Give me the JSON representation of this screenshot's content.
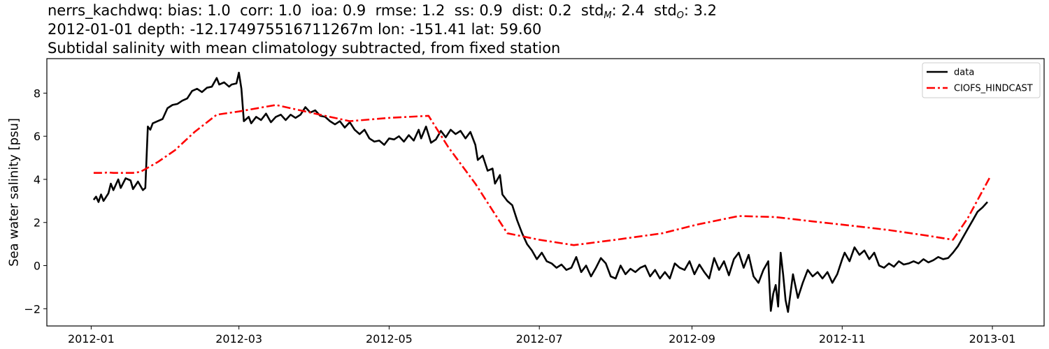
{
  "title": {
    "stats_prefix": "nerrs_kachdwq: bias: 1.0  corr: 1.0  ioa: 0.9  rmse: 1.2  ss: 0.9  dist: 0.2  std",
    "std_m_sub": "M",
    "std_m_value": ": 2.4  std",
    "std_o_sub": "O",
    "std_o_value": ": 3.2",
    "line2": "2012-01-01 depth: -12.174975516711267m lon: -151.41 lat: 59.60",
    "line3": "Subtidal salinity with mean climatology subtracted, from fixed station"
  },
  "chart_data": {
    "type": "line",
    "ylabel": "Sea water salinity [psu]",
    "xlim": [
      "2011-12-14",
      "2013-01-22"
    ],
    "ylim": [
      -2.8,
      9.6
    ],
    "x_ticks": [
      "2012-01-01",
      "2012-03-01",
      "2012-05-01",
      "2012-07-01",
      "2012-09-01",
      "2012-11-01",
      "2013-01-01"
    ],
    "x_tick_labels": [
      "2012-01",
      "2012-03",
      "2012-05",
      "2012-07",
      "2012-09",
      "2012-11",
      "2013-01"
    ],
    "y_ticks": [
      -2,
      0,
      2,
      4,
      6,
      8
    ],
    "y_tick_labels": [
      "−2",
      "0",
      "2",
      "4",
      "6",
      "8"
    ],
    "legend_position": "upper right",
    "grid": false,
    "series": [
      {
        "name": "data",
        "color": "#000000",
        "style": "solid",
        "points": [
          [
            "2012-01-02",
            3.05
          ],
          [
            "2012-01-03",
            3.2
          ],
          [
            "2012-01-04",
            2.95
          ],
          [
            "2012-01-05",
            3.3
          ],
          [
            "2012-01-06",
            3.0
          ],
          [
            "2012-01-08",
            3.35
          ],
          [
            "2012-01-09",
            3.8
          ],
          [
            "2012-01-10",
            3.5
          ],
          [
            "2012-01-12",
            4.0
          ],
          [
            "2012-01-13",
            3.6
          ],
          [
            "2012-01-15",
            4.05
          ],
          [
            "2012-01-17",
            3.95
          ],
          [
            "2012-01-18",
            3.55
          ],
          [
            "2012-01-20",
            3.9
          ],
          [
            "2012-01-22",
            3.5
          ],
          [
            "2012-01-23",
            3.6
          ],
          [
            "2012-01-24",
            6.45
          ],
          [
            "2012-01-25",
            6.3
          ],
          [
            "2012-01-26",
            6.6
          ],
          [
            "2012-01-28",
            6.7
          ],
          [
            "2012-01-30",
            6.8
          ],
          [
            "2012-02-01",
            7.3
          ],
          [
            "2012-02-03",
            7.45
          ],
          [
            "2012-02-05",
            7.5
          ],
          [
            "2012-02-07",
            7.65
          ],
          [
            "2012-02-09",
            7.75
          ],
          [
            "2012-02-11",
            8.1
          ],
          [
            "2012-02-13",
            8.2
          ],
          [
            "2012-02-15",
            8.05
          ],
          [
            "2012-02-17",
            8.25
          ],
          [
            "2012-02-19",
            8.3
          ],
          [
            "2012-02-21",
            8.7
          ],
          [
            "2012-02-22",
            8.4
          ],
          [
            "2012-02-24",
            8.5
          ],
          [
            "2012-02-26",
            8.3
          ],
          [
            "2012-02-27",
            8.4
          ],
          [
            "2012-02-29",
            8.45
          ],
          [
            "2012-03-01",
            8.95
          ],
          [
            "2012-03-02",
            8.2
          ],
          [
            "2012-03-03",
            6.7
          ],
          [
            "2012-03-05",
            6.9
          ],
          [
            "2012-03-06",
            6.6
          ],
          [
            "2012-03-08",
            6.9
          ],
          [
            "2012-03-10",
            6.75
          ],
          [
            "2012-03-12",
            7.05
          ],
          [
            "2012-03-14",
            6.65
          ],
          [
            "2012-03-16",
            6.9
          ],
          [
            "2012-03-18",
            7.0
          ],
          [
            "2012-03-20",
            6.75
          ],
          [
            "2012-03-22",
            7.0
          ],
          [
            "2012-03-24",
            6.85
          ],
          [
            "2012-03-26",
            7.0
          ],
          [
            "2012-03-28",
            7.35
          ],
          [
            "2012-03-30",
            7.1
          ],
          [
            "2012-04-01",
            7.2
          ],
          [
            "2012-04-03",
            6.95
          ],
          [
            "2012-04-05",
            6.9
          ],
          [
            "2012-04-07",
            6.7
          ],
          [
            "2012-04-09",
            6.55
          ],
          [
            "2012-04-11",
            6.7
          ],
          [
            "2012-04-13",
            6.4
          ],
          [
            "2012-04-15",
            6.65
          ],
          [
            "2012-04-17",
            6.3
          ],
          [
            "2012-04-19",
            6.1
          ],
          [
            "2012-04-21",
            6.3
          ],
          [
            "2012-04-23",
            5.9
          ],
          [
            "2012-04-25",
            5.75
          ],
          [
            "2012-04-27",
            5.8
          ],
          [
            "2012-04-29",
            5.6
          ],
          [
            "2012-05-01",
            5.9
          ],
          [
            "2012-05-03",
            5.85
          ],
          [
            "2012-05-05",
            6.0
          ],
          [
            "2012-05-07",
            5.75
          ],
          [
            "2012-05-09",
            6.05
          ],
          [
            "2012-05-11",
            5.8
          ],
          [
            "2012-05-13",
            6.3
          ],
          [
            "2012-05-14",
            5.9
          ],
          [
            "2012-05-16",
            6.45
          ],
          [
            "2012-05-18",
            5.7
          ],
          [
            "2012-05-20",
            5.85
          ],
          [
            "2012-05-22",
            6.25
          ],
          [
            "2012-05-24",
            5.95
          ],
          [
            "2012-05-26",
            6.3
          ],
          [
            "2012-05-28",
            6.1
          ],
          [
            "2012-05-30",
            6.25
          ],
          [
            "2012-06-01",
            5.9
          ],
          [
            "2012-06-03",
            6.2
          ],
          [
            "2012-06-05",
            5.6
          ],
          [
            "2012-06-06",
            4.9
          ],
          [
            "2012-06-08",
            5.1
          ],
          [
            "2012-06-10",
            4.4
          ],
          [
            "2012-06-12",
            4.5
          ],
          [
            "2012-06-13",
            3.8
          ],
          [
            "2012-06-15",
            4.2
          ],
          [
            "2012-06-16",
            3.3
          ],
          [
            "2012-06-18",
            3.0
          ],
          [
            "2012-06-20",
            2.8
          ],
          [
            "2012-06-22",
            2.1
          ],
          [
            "2012-06-24",
            1.5
          ],
          [
            "2012-06-26",
            1.0
          ],
          [
            "2012-06-28",
            0.7
          ],
          [
            "2012-06-30",
            0.3
          ],
          [
            "2012-07-02",
            0.6
          ],
          [
            "2012-07-04",
            0.2
          ],
          [
            "2012-07-06",
            0.1
          ],
          [
            "2012-07-08",
            -0.1
          ],
          [
            "2012-07-10",
            0.05
          ],
          [
            "2012-07-12",
            -0.2
          ],
          [
            "2012-07-14",
            -0.1
          ],
          [
            "2012-07-16",
            0.4
          ],
          [
            "2012-07-18",
            -0.3
          ],
          [
            "2012-07-20",
            0.0
          ],
          [
            "2012-07-22",
            -0.5
          ],
          [
            "2012-07-24",
            -0.1
          ],
          [
            "2012-07-26",
            0.35
          ],
          [
            "2012-07-28",
            0.1
          ],
          [
            "2012-07-30",
            -0.5
          ],
          [
            "2012-08-01",
            -0.6
          ],
          [
            "2012-08-03",
            0.0
          ],
          [
            "2012-08-05",
            -0.4
          ],
          [
            "2012-08-07",
            -0.15
          ],
          [
            "2012-08-09",
            -0.3
          ],
          [
            "2012-08-11",
            -0.1
          ],
          [
            "2012-08-13",
            0.0
          ],
          [
            "2012-08-15",
            -0.5
          ],
          [
            "2012-08-17",
            -0.2
          ],
          [
            "2012-08-19",
            -0.6
          ],
          [
            "2012-08-21",
            -0.3
          ],
          [
            "2012-08-23",
            -0.6
          ],
          [
            "2012-08-25",
            0.1
          ],
          [
            "2012-08-27",
            -0.1
          ],
          [
            "2012-08-29",
            -0.2
          ],
          [
            "2012-08-31",
            0.2
          ],
          [
            "2012-09-02",
            -0.4
          ],
          [
            "2012-09-04",
            0.05
          ],
          [
            "2012-09-06",
            -0.3
          ],
          [
            "2012-09-08",
            -0.6
          ],
          [
            "2012-09-10",
            0.35
          ],
          [
            "2012-09-12",
            -0.2
          ],
          [
            "2012-09-14",
            0.2
          ],
          [
            "2012-09-16",
            -0.45
          ],
          [
            "2012-09-18",
            0.3
          ],
          [
            "2012-09-20",
            0.6
          ],
          [
            "2012-09-22",
            -0.1
          ],
          [
            "2012-09-24",
            0.5
          ],
          [
            "2012-09-26",
            -0.5
          ],
          [
            "2012-09-28",
            -0.8
          ],
          [
            "2012-09-30",
            -0.2
          ],
          [
            "2012-10-02",
            0.2
          ],
          [
            "2012-10-03",
            -2.1
          ],
          [
            "2012-10-04",
            -1.3
          ],
          [
            "2012-10-05",
            -0.9
          ],
          [
            "2012-10-06",
            -1.9
          ],
          [
            "2012-10-07",
            0.6
          ],
          [
            "2012-10-08",
            -0.4
          ],
          [
            "2012-10-09",
            -1.6
          ],
          [
            "2012-10-10",
            -2.15
          ],
          [
            "2012-10-11",
            -1.3
          ],
          [
            "2012-10-12",
            -0.4
          ],
          [
            "2012-10-14",
            -1.5
          ],
          [
            "2012-10-16",
            -0.8
          ],
          [
            "2012-10-18",
            -0.2
          ],
          [
            "2012-10-20",
            -0.5
          ],
          [
            "2012-10-22",
            -0.3
          ],
          [
            "2012-10-24",
            -0.6
          ],
          [
            "2012-10-26",
            -0.3
          ],
          [
            "2012-10-28",
            -0.8
          ],
          [
            "2012-10-30",
            -0.4
          ],
          [
            "2012-11-01",
            0.3
          ],
          [
            "2012-11-02",
            0.6
          ],
          [
            "2012-11-04",
            0.2
          ],
          [
            "2012-11-06",
            0.85
          ],
          [
            "2012-11-08",
            0.5
          ],
          [
            "2012-11-10",
            0.7
          ],
          [
            "2012-11-12",
            0.3
          ],
          [
            "2012-11-14",
            0.6
          ],
          [
            "2012-11-16",
            0.0
          ],
          [
            "2012-11-18",
            -0.1
          ],
          [
            "2012-11-20",
            0.1
          ],
          [
            "2012-11-22",
            -0.05
          ],
          [
            "2012-11-24",
            0.2
          ],
          [
            "2012-11-26",
            0.05
          ],
          [
            "2012-11-28",
            0.1
          ],
          [
            "2012-11-30",
            0.2
          ],
          [
            "2012-12-02",
            0.1
          ],
          [
            "2012-12-04",
            0.3
          ],
          [
            "2012-12-06",
            0.15
          ],
          [
            "2012-12-08",
            0.25
          ],
          [
            "2012-12-10",
            0.4
          ],
          [
            "2012-12-12",
            0.3
          ],
          [
            "2012-12-14",
            0.35
          ],
          [
            "2012-12-16",
            0.6
          ],
          [
            "2012-12-18",
            0.9
          ],
          [
            "2012-12-20",
            1.3
          ],
          [
            "2012-12-22",
            1.7
          ],
          [
            "2012-12-24",
            2.1
          ],
          [
            "2012-12-26",
            2.5
          ],
          [
            "2012-12-28",
            2.7
          ],
          [
            "2012-12-30",
            2.95
          ]
        ]
      },
      {
        "name": "CIOFS_HINDCAST",
        "color": "#ff0000",
        "style": "dashdot",
        "points": [
          [
            "2012-01-02",
            4.3
          ],
          [
            "2012-01-05",
            4.3
          ],
          [
            "2012-01-08",
            4.32
          ],
          [
            "2012-01-10",
            4.3
          ],
          [
            "2012-01-14",
            4.3
          ],
          [
            "2012-01-18",
            4.3
          ],
          [
            "2012-01-21",
            4.35
          ],
          [
            "2012-01-28",
            4.8
          ],
          [
            "2012-02-04",
            5.35
          ],
          [
            "2012-02-12",
            6.2
          ],
          [
            "2012-02-21",
            7.0
          ],
          [
            "2012-03-01",
            7.15
          ],
          [
            "2012-03-16",
            7.45
          ],
          [
            "2012-04-01",
            7.05
          ],
          [
            "2012-04-15",
            6.7
          ],
          [
            "2012-05-01",
            6.85
          ],
          [
            "2012-05-17",
            6.95
          ],
          [
            "2012-05-25",
            5.5
          ],
          [
            "2012-06-05",
            3.8
          ],
          [
            "2012-06-18",
            1.5
          ],
          [
            "2012-07-01",
            1.2
          ],
          [
            "2012-07-15",
            0.95
          ],
          [
            "2012-08-01",
            1.2
          ],
          [
            "2012-08-20",
            1.5
          ],
          [
            "2012-09-03",
            1.9
          ],
          [
            "2012-09-20",
            2.3
          ],
          [
            "2012-10-05",
            2.25
          ],
          [
            "2012-10-20",
            2.05
          ],
          [
            "2012-11-05",
            1.85
          ],
          [
            "2012-11-20",
            1.65
          ],
          [
            "2012-12-05",
            1.4
          ],
          [
            "2012-12-16",
            1.2
          ],
          [
            "2012-12-22",
            2.2
          ],
          [
            "2012-12-31",
            4.1
          ]
        ]
      }
    ]
  }
}
